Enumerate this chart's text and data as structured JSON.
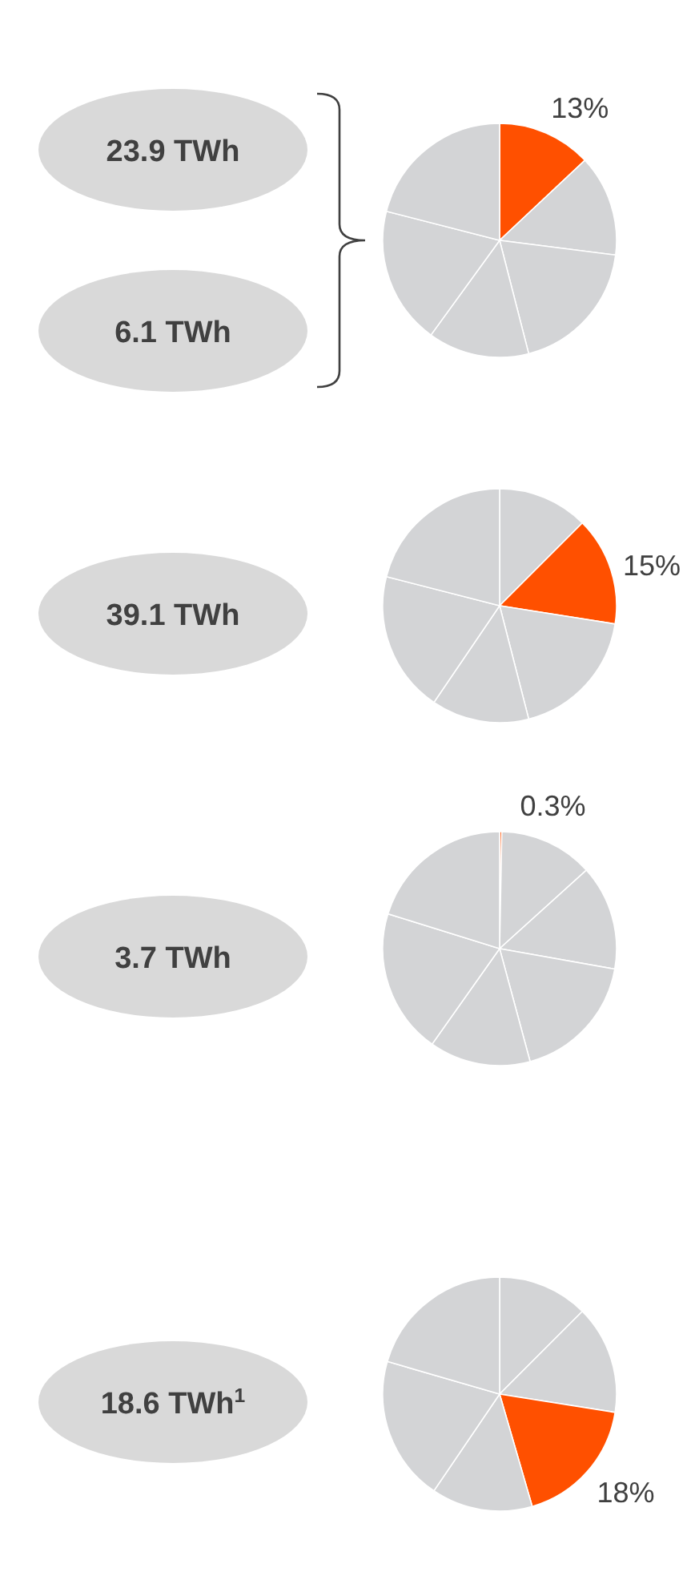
{
  "chart_data": [
    {
      "type": "pie",
      "categories": [
        null,
        null,
        null,
        null,
        null,
        null
      ],
      "values": [
        13,
        14,
        19,
        14,
        19,
        21
      ],
      "colors": [
        "#ff5000",
        "#d3d4d6",
        "#d3d4d6",
        "#d3d4d6",
        "#d3d4d6",
        "#d3d4d6"
      ],
      "value_labels": [
        "13%",
        null,
        null,
        null,
        null,
        null
      ],
      "annotations": [
        "23.9 TWh",
        "6.1 TWh"
      ]
    },
    {
      "type": "pie",
      "categories": [
        null,
        null,
        null,
        null,
        null,
        null
      ],
      "values": [
        12.5,
        15,
        18.5,
        13.5,
        19.5,
        21
      ],
      "colors": [
        "#d3d4d6",
        "#ff5000",
        "#d3d4d6",
        "#d3d4d6",
        "#d3d4d6",
        "#d3d4d6"
      ],
      "value_labels": [
        null,
        "15%",
        null,
        null,
        null,
        null
      ],
      "annotations": [
        "39.1 TWh"
      ]
    },
    {
      "type": "pie",
      "categories": [
        null,
        null,
        null,
        null,
        null,
        null,
        null
      ],
      "values": [
        0.3,
        13,
        14.5,
        18,
        14,
        20,
        20.2
      ],
      "colors": [
        "#ff5000",
        "#d3d4d6",
        "#d3d4d6",
        "#d3d4d6",
        "#d3d4d6",
        "#d3d4d6",
        "#d3d4d6"
      ],
      "value_labels": [
        "0.3%",
        null,
        null,
        null,
        null,
        null,
        null
      ],
      "annotations": [
        "3.7 TWh"
      ]
    },
    {
      "type": "pie",
      "categories": [
        null,
        null,
        null,
        null,
        null,
        null
      ],
      "values": [
        12.5,
        15,
        18,
        14,
        20,
        20.5
      ],
      "colors": [
        "#d3d4d6",
        "#d3d4d6",
        "#ff5000",
        "#d3d4d6",
        "#d3d4d6",
        "#d3d4d6"
      ],
      "value_labels": [
        null,
        null,
        "18%",
        null,
        null,
        null
      ],
      "annotations": [
        "18.6 TWh$^{1}$"
      ]
    }
  ]
}
